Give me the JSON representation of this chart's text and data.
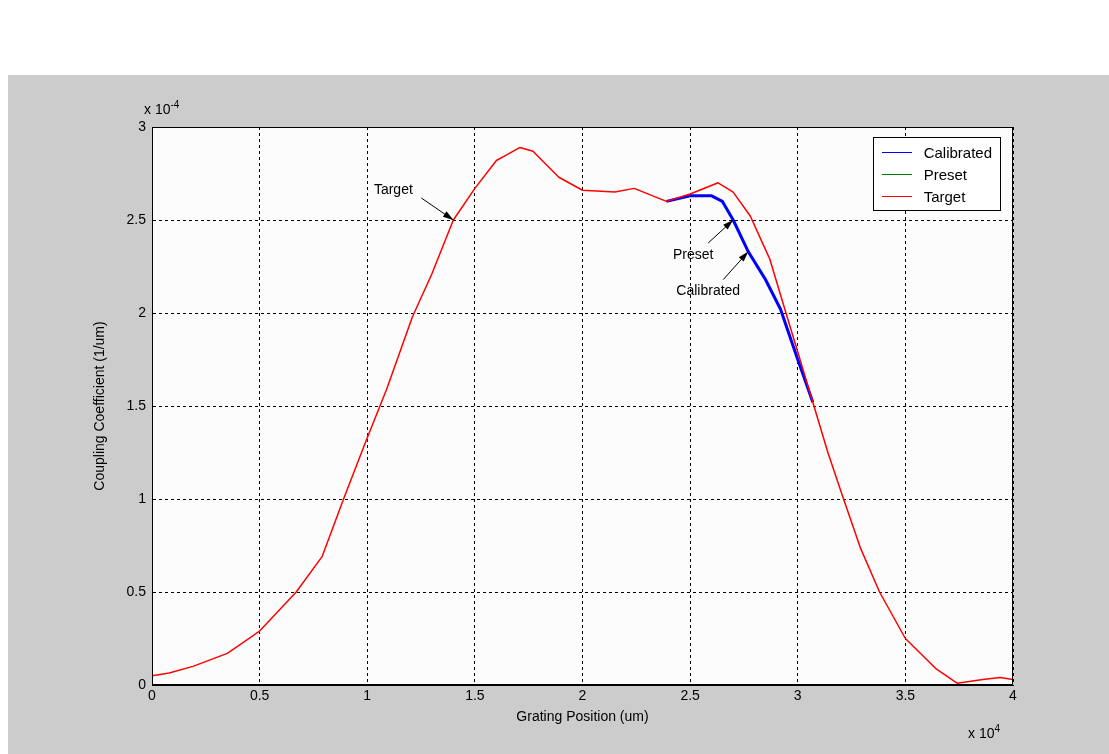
{
  "chart_data": {
    "type": "line",
    "xlabel": "Grating Position (um)",
    "ylabel": "Coupling Coefficient (1/um)",
    "series": [
      {
        "name": "Calibrated",
        "color": "#0000ff",
        "x": [
          2.39,
          2.5,
          2.6,
          2.65,
          2.7,
          2.77,
          2.85,
          2.92,
          3.0,
          3.07
        ],
        "values": [
          2.6,
          2.63,
          2.63,
          2.6,
          2.5,
          2.33,
          2.18,
          2.02,
          1.75,
          1.52
        ]
      },
      {
        "name": "Preset",
        "color": "#008000"
      },
      {
        "name": "Target",
        "color": "#ff0000",
        "x": [
          0,
          0.08,
          0.19,
          0.35,
          0.5,
          0.67,
          0.79,
          0.89,
          0.99,
          1.09,
          1.21,
          1.3,
          1.4,
          1.5,
          1.6,
          1.71,
          1.77,
          1.89,
          2.0,
          2.15,
          2.24,
          2.39,
          2.5,
          2.63,
          2.7,
          2.78,
          2.87,
          2.94,
          3.0,
          3.07,
          3.14,
          3.21,
          3.29,
          3.38,
          3.5,
          3.64,
          3.74,
          3.86,
          3.94,
          4.0
        ],
        "values": [
          0.05,
          0.065,
          0.1,
          0.17,
          0.29,
          0.5,
          0.69,
          1.0,
          1.3,
          1.59,
          1.98,
          2.21,
          2.5,
          2.67,
          2.82,
          2.89,
          2.87,
          2.73,
          2.66,
          2.65,
          2.67,
          2.6,
          2.64,
          2.7,
          2.65,
          2.52,
          2.29,
          2.02,
          1.79,
          1.52,
          1.25,
          1.01,
          0.74,
          0.5,
          0.25,
          0.09,
          0.01,
          0.03,
          0.04,
          0.03
        ]
      }
    ],
    "xlim": [
      0,
      4
    ],
    "xticks": [
      0,
      0.5,
      1,
      1.5,
      2,
      2.5,
      3,
      3.5,
      4
    ],
    "ylim": [
      0,
      3
    ],
    "yticks": [
      0,
      0.5,
      1,
      1.5,
      2,
      2.5,
      3
    ],
    "grid": true,
    "legend": "top right",
    "marker": "none",
    "line_style": "solid",
    "annotations": [
      {
        "text": "Target",
        "x": 1.4,
        "y": 2.5
      },
      {
        "text": "Preset",
        "x": 2.7,
        "y": 2.5
      },
      {
        "text": "Calibrated",
        "x": 2.77,
        "y": 2.33
      },
      "x 10$^{-4}$",
      "x 10$^{4}$"
    ]
  }
}
